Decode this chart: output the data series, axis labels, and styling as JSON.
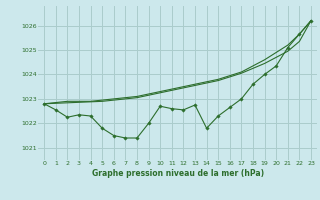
{
  "title": "Graphe pression niveau de la mer (hPa)",
  "bg_color": "#cce8ec",
  "grid_color": "#aacccc",
  "line_color": "#2d6e2d",
  "text_color": "#2d6e2d",
  "xlim": [
    -0.5,
    23.5
  ],
  "ylim": [
    1020.5,
    1026.8
  ],
  "yticks": [
    1021,
    1022,
    1023,
    1024,
    1025,
    1026
  ],
  "xticks": [
    0,
    1,
    2,
    3,
    4,
    5,
    6,
    7,
    8,
    9,
    10,
    11,
    12,
    13,
    14,
    15,
    16,
    17,
    18,
    19,
    20,
    21,
    22,
    23
  ],
  "series_main": [
    1022.8,
    1022.55,
    1022.25,
    1022.35,
    1022.3,
    1021.8,
    1021.5,
    1021.4,
    1021.4,
    1022.0,
    1022.7,
    1022.6,
    1022.55,
    1022.75,
    1021.8,
    1022.3,
    1022.65,
    1023.0,
    1023.6,
    1024.0,
    1024.35,
    1025.1,
    1025.65,
    1026.2
  ],
  "series_smooth1": [
    1022.8,
    1022.85,
    1022.9,
    1022.9,
    1022.9,
    1022.95,
    1023.0,
    1023.05,
    1023.1,
    1023.2,
    1023.3,
    1023.4,
    1023.5,
    1023.6,
    1023.7,
    1023.8,
    1023.95,
    1024.1,
    1024.35,
    1024.6,
    1024.9,
    1025.2,
    1025.65,
    1026.2
  ],
  "series_smooth2": [
    1022.8,
    1022.82,
    1022.84,
    1022.86,
    1022.88,
    1022.9,
    1022.95,
    1023.0,
    1023.05,
    1023.15,
    1023.25,
    1023.35,
    1023.45,
    1023.55,
    1023.65,
    1023.75,
    1023.9,
    1024.05,
    1024.25,
    1024.45,
    1024.7,
    1024.95,
    1025.35,
    1026.2
  ]
}
